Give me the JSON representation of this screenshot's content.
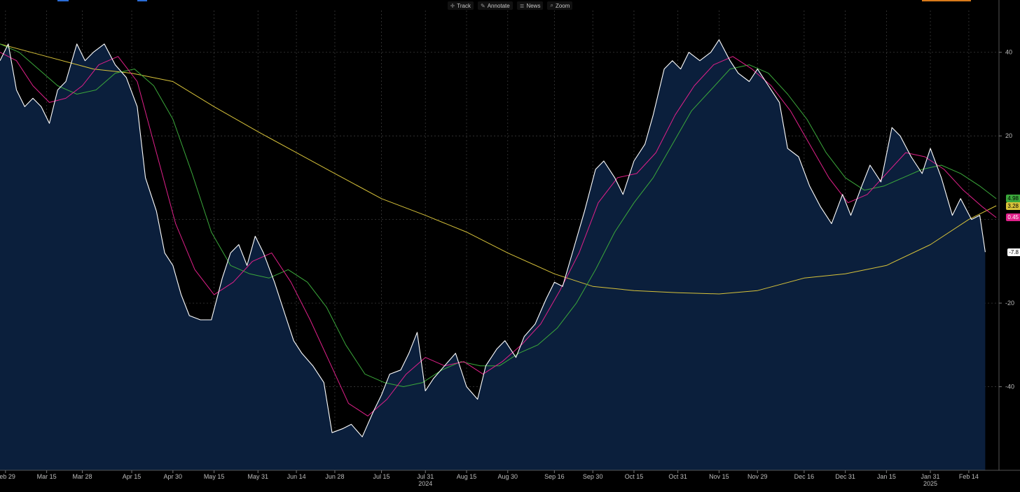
{
  "toolbar": {
    "items": [
      {
        "label": "Track",
        "icon": "crosshair-icon"
      },
      {
        "label": "Annotate",
        "icon": "pencil-icon"
      },
      {
        "label": "News",
        "icon": "news-icon"
      },
      {
        "label": "Zoom",
        "icon": "magnifier-icon"
      }
    ]
  },
  "colors": {
    "background": "#000000",
    "area_fill": "#0b1f3c",
    "price": "#ffffff",
    "ma_short": "#e0208a",
    "ma_medium": "#3ba83b",
    "ma_long": "#d7c23a",
    "grid": "#3a3a3a",
    "axis_text": "#bdbdbd"
  },
  "value_tags": [
    {
      "label": "4.98",
      "series": "ma_medium",
      "bg": "#3ba83b",
      "fg": "#000000"
    },
    {
      "label": "3.28",
      "series": "ma_long",
      "bg": "#d7c23a",
      "fg": "#000000"
    },
    {
      "label": "0.45",
      "series": "ma_short",
      "bg": "#e0208a",
      "fg": "#ffffff"
    },
    {
      "label": "-7.8",
      "series": "price",
      "bg": "#ffffff",
      "fg": "#000000"
    }
  ],
  "chart_data": {
    "type": "line",
    "grid": true,
    "ylim": [
      -60,
      50
    ],
    "y_ticks": [
      40,
      20,
      -20,
      -40
    ],
    "y_ticks_drawn": [
      40,
      20,
      0,
      -20,
      -40
    ],
    "y_tick_labels": [
      "40",
      "20",
      "-20",
      "-40"
    ],
    "x_range": [
      "2024-02-27",
      "2025-02-25"
    ],
    "x_ticks": [
      {
        "label": "Feb 29",
        "date": "2024-02-29"
      },
      {
        "label": "Mar 15",
        "date": "2024-03-15"
      },
      {
        "label": "Mar 28",
        "date": "2024-03-28"
      },
      {
        "label": "Apr 15",
        "date": "2024-04-15"
      },
      {
        "label": "Apr 30",
        "date": "2024-04-30"
      },
      {
        "label": "May 15",
        "date": "2024-05-15"
      },
      {
        "label": "May 31",
        "date": "2024-05-31"
      },
      {
        "label": "Jun 14",
        "date": "2024-06-14"
      },
      {
        "label": "Jun 28",
        "date": "2024-06-28"
      },
      {
        "label": "Jul 15",
        "date": "2024-07-15"
      },
      {
        "label": "Jul 31",
        "date": "2024-07-31"
      },
      {
        "label": "Aug 15",
        "date": "2024-08-15"
      },
      {
        "label": "Aug 30",
        "date": "2024-08-30"
      },
      {
        "label": "Sep 16",
        "date": "2024-09-16"
      },
      {
        "label": "Sep 30",
        "date": "2024-09-30"
      },
      {
        "label": "Oct 15",
        "date": "2024-10-15"
      },
      {
        "label": "Oct 31",
        "date": "2024-10-31"
      },
      {
        "label": "Nov 15",
        "date": "2024-11-15"
      },
      {
        "label": "Nov 29",
        "date": "2024-11-29"
      },
      {
        "label": "Dec 16",
        "date": "2024-12-16"
      },
      {
        "label": "Dec 31",
        "date": "2024-12-31"
      },
      {
        "label": "Jan 15",
        "date": "2025-01-15"
      },
      {
        "label": "Jan 31",
        "date": "2025-01-31"
      },
      {
        "label": "Feb 14",
        "date": "2025-02-14"
      }
    ],
    "year_labels": [
      {
        "label": "2024",
        "date": "2024-07-31"
      },
      {
        "label": "2025",
        "date": "2025-01-31"
      }
    ],
    "series": [
      {
        "key": "price",
        "style": "area",
        "points": [
          [
            "2024-02-27",
            38
          ],
          [
            "2024-03-01",
            42
          ],
          [
            "2024-03-04",
            31
          ],
          [
            "2024-03-07",
            27
          ],
          [
            "2024-03-10",
            29
          ],
          [
            "2024-03-13",
            27
          ],
          [
            "2024-03-16",
            23
          ],
          [
            "2024-03-19",
            31
          ],
          [
            "2024-03-22",
            33
          ],
          [
            "2024-03-26",
            42
          ],
          [
            "2024-03-29",
            38
          ],
          [
            "2024-04-01",
            40
          ],
          [
            "2024-04-05",
            42
          ],
          [
            "2024-04-09",
            37
          ],
          [
            "2024-04-13",
            34
          ],
          [
            "2024-04-17",
            27
          ],
          [
            "2024-04-20",
            10
          ],
          [
            "2024-04-24",
            2
          ],
          [
            "2024-04-27",
            -8
          ],
          [
            "2024-04-30",
            -11
          ],
          [
            "2024-05-03",
            -18
          ],
          [
            "2024-05-06",
            -23
          ],
          [
            "2024-05-10",
            -24
          ],
          [
            "2024-05-14",
            -24
          ],
          [
            "2024-05-18",
            -14
          ],
          [
            "2024-05-21",
            -8
          ],
          [
            "2024-05-24",
            -6
          ],
          [
            "2024-05-27",
            -11
          ],
          [
            "2024-05-30",
            -4
          ],
          [
            "2024-06-02",
            -8
          ],
          [
            "2024-06-06",
            -15
          ],
          [
            "2024-06-10",
            -23
          ],
          [
            "2024-06-13",
            -29
          ],
          [
            "2024-06-16",
            -32
          ],
          [
            "2024-06-20",
            -35
          ],
          [
            "2024-06-24",
            -39
          ],
          [
            "2024-06-27",
            -51
          ],
          [
            "2024-07-01",
            -50
          ],
          [
            "2024-07-04",
            -49
          ],
          [
            "2024-07-08",
            -52
          ],
          [
            "2024-07-12",
            -46
          ],
          [
            "2024-07-15",
            -42
          ],
          [
            "2024-07-18",
            -37
          ],
          [
            "2024-07-22",
            -36
          ],
          [
            "2024-07-25",
            -32
          ],
          [
            "2024-07-28",
            -27
          ],
          [
            "2024-07-31",
            -41
          ],
          [
            "2024-08-03",
            -38
          ],
          [
            "2024-08-07",
            -35
          ],
          [
            "2024-08-11",
            -32
          ],
          [
            "2024-08-15",
            -40
          ],
          [
            "2024-08-19",
            -43
          ],
          [
            "2024-08-22",
            -35
          ],
          [
            "2024-08-26",
            -31
          ],
          [
            "2024-08-29",
            -29
          ],
          [
            "2024-09-02",
            -33
          ],
          [
            "2024-09-05",
            -28
          ],
          [
            "2024-09-09",
            -25
          ],
          [
            "2024-09-13",
            -19
          ],
          [
            "2024-09-16",
            -15
          ],
          [
            "2024-09-19",
            -16
          ],
          [
            "2024-09-23",
            -7
          ],
          [
            "2024-09-27",
            2
          ],
          [
            "2024-10-01",
            12
          ],
          [
            "2024-10-04",
            14
          ],
          [
            "2024-10-08",
            10
          ],
          [
            "2024-10-11",
            6
          ],
          [
            "2024-10-15",
            14
          ],
          [
            "2024-10-19",
            18
          ],
          [
            "2024-10-22",
            25
          ],
          [
            "2024-10-26",
            36
          ],
          [
            "2024-10-29",
            38
          ],
          [
            "2024-11-01",
            36
          ],
          [
            "2024-11-04",
            40
          ],
          [
            "2024-11-08",
            38
          ],
          [
            "2024-11-12",
            40
          ],
          [
            "2024-11-15",
            43
          ],
          [
            "2024-11-19",
            38
          ],
          [
            "2024-11-22",
            35
          ],
          [
            "2024-11-26",
            33
          ],
          [
            "2024-11-29",
            36
          ],
          [
            "2024-12-03",
            32
          ],
          [
            "2024-12-07",
            28
          ],
          [
            "2024-12-10",
            17
          ],
          [
            "2024-12-14",
            15
          ],
          [
            "2024-12-18",
            8
          ],
          [
            "2024-12-22",
            3
          ],
          [
            "2024-12-26",
            -1
          ],
          [
            "2024-12-30",
            6
          ],
          [
            "2025-01-02",
            1
          ],
          [
            "2025-01-06",
            8
          ],
          [
            "2025-01-09",
            13
          ],
          [
            "2025-01-13",
            9
          ],
          [
            "2025-01-17",
            22
          ],
          [
            "2025-01-20",
            20
          ],
          [
            "2025-01-24",
            15
          ],
          [
            "2025-01-28",
            11
          ],
          [
            "2025-01-31",
            17
          ],
          [
            "2025-02-04",
            10
          ],
          [
            "2025-02-08",
            1
          ],
          [
            "2025-02-11",
            5
          ],
          [
            "2025-02-15",
            0
          ],
          [
            "2025-02-18",
            1
          ],
          [
            "2025-02-20",
            -7.8
          ]
        ]
      },
      {
        "key": "ma_short",
        "style": "line",
        "points": [
          [
            "2024-02-27",
            40
          ],
          [
            "2024-03-04",
            38
          ],
          [
            "2024-03-10",
            32
          ],
          [
            "2024-03-16",
            28
          ],
          [
            "2024-03-22",
            29
          ],
          [
            "2024-03-28",
            32
          ],
          [
            "2024-04-03",
            37
          ],
          [
            "2024-04-10",
            39
          ],
          [
            "2024-04-17",
            33
          ],
          [
            "2024-04-24",
            16
          ],
          [
            "2024-05-01",
            -1
          ],
          [
            "2024-05-08",
            -12
          ],
          [
            "2024-05-15",
            -18
          ],
          [
            "2024-05-22",
            -15
          ],
          [
            "2024-05-29",
            -10
          ],
          [
            "2024-06-05",
            -8
          ],
          [
            "2024-06-12",
            -15
          ],
          [
            "2024-06-19",
            -24
          ],
          [
            "2024-06-26",
            -34
          ],
          [
            "2024-07-03",
            -44
          ],
          [
            "2024-07-10",
            -47
          ],
          [
            "2024-07-17",
            -43
          ],
          [
            "2024-07-24",
            -37
          ],
          [
            "2024-07-31",
            -33
          ],
          [
            "2024-08-07",
            -35
          ],
          [
            "2024-08-14",
            -34
          ],
          [
            "2024-08-21",
            -37
          ],
          [
            "2024-08-28",
            -34
          ],
          [
            "2024-09-04",
            -30
          ],
          [
            "2024-09-11",
            -25
          ],
          [
            "2024-09-18",
            -17
          ],
          [
            "2024-09-25",
            -8
          ],
          [
            "2024-10-02",
            4
          ],
          [
            "2024-10-09",
            10
          ],
          [
            "2024-10-16",
            11
          ],
          [
            "2024-10-23",
            16
          ],
          [
            "2024-10-30",
            25
          ],
          [
            "2024-11-06",
            32
          ],
          [
            "2024-11-13",
            37
          ],
          [
            "2024-11-20",
            39
          ],
          [
            "2024-11-27",
            36
          ],
          [
            "2024-12-04",
            32
          ],
          [
            "2024-12-11",
            26
          ],
          [
            "2024-12-18",
            18
          ],
          [
            "2024-12-25",
            10
          ],
          [
            "2025-01-01",
            4
          ],
          [
            "2025-01-08",
            6
          ],
          [
            "2025-01-15",
            11
          ],
          [
            "2025-01-22",
            16
          ],
          [
            "2025-01-29",
            15
          ],
          [
            "2025-02-05",
            12
          ],
          [
            "2025-02-12",
            7
          ],
          [
            "2025-02-19",
            3
          ],
          [
            "2025-02-24",
            0.45
          ]
        ]
      },
      {
        "key": "ma_medium",
        "style": "line",
        "points": [
          [
            "2024-02-27",
            42
          ],
          [
            "2024-03-05",
            40
          ],
          [
            "2024-03-12",
            36
          ],
          [
            "2024-03-19",
            32
          ],
          [
            "2024-03-26",
            30
          ],
          [
            "2024-04-02",
            31
          ],
          [
            "2024-04-09",
            35
          ],
          [
            "2024-04-16",
            36
          ],
          [
            "2024-04-23",
            32
          ],
          [
            "2024-04-30",
            24
          ],
          [
            "2024-05-07",
            11
          ],
          [
            "2024-05-14",
            -3
          ],
          [
            "2024-05-21",
            -11
          ],
          [
            "2024-05-28",
            -13
          ],
          [
            "2024-06-04",
            -14
          ],
          [
            "2024-06-11",
            -12
          ],
          [
            "2024-06-18",
            -15
          ],
          [
            "2024-06-25",
            -21
          ],
          [
            "2024-07-02",
            -30
          ],
          [
            "2024-07-09",
            -37
          ],
          [
            "2024-07-16",
            -39
          ],
          [
            "2024-07-23",
            -40
          ],
          [
            "2024-07-30",
            -39
          ],
          [
            "2024-08-06",
            -36
          ],
          [
            "2024-08-13",
            -34
          ],
          [
            "2024-08-20",
            -35
          ],
          [
            "2024-08-27",
            -35
          ],
          [
            "2024-09-03",
            -32
          ],
          [
            "2024-09-10",
            -30
          ],
          [
            "2024-09-17",
            -26
          ],
          [
            "2024-09-24",
            -20
          ],
          [
            "2024-10-01",
            -12
          ],
          [
            "2024-10-08",
            -3
          ],
          [
            "2024-10-15",
            4
          ],
          [
            "2024-10-22",
            10
          ],
          [
            "2024-10-29",
            18
          ],
          [
            "2024-11-05",
            26
          ],
          [
            "2024-11-12",
            31
          ],
          [
            "2024-11-19",
            36
          ],
          [
            "2024-11-26",
            37
          ],
          [
            "2024-12-03",
            35
          ],
          [
            "2024-12-10",
            30
          ],
          [
            "2024-12-17",
            24
          ],
          [
            "2024-12-24",
            16
          ],
          [
            "2024-12-31",
            10
          ],
          [
            "2025-01-07",
            7
          ],
          [
            "2025-01-14",
            8
          ],
          [
            "2025-01-21",
            10
          ],
          [
            "2025-01-28",
            12
          ],
          [
            "2025-02-04",
            13
          ],
          [
            "2025-02-11",
            11
          ],
          [
            "2025-02-18",
            8
          ],
          [
            "2025-02-24",
            4.98
          ]
        ]
      },
      {
        "key": "ma_long",
        "style": "line",
        "points": [
          [
            "2024-02-27",
            42
          ],
          [
            "2024-03-15",
            39
          ],
          [
            "2024-04-01",
            36
          ],
          [
            "2024-04-15",
            35
          ],
          [
            "2024-04-30",
            33
          ],
          [
            "2024-05-15",
            27
          ],
          [
            "2024-05-31",
            21
          ],
          [
            "2024-06-14",
            16
          ],
          [
            "2024-06-28",
            11
          ],
          [
            "2024-07-15",
            5
          ],
          [
            "2024-07-31",
            1
          ],
          [
            "2024-08-15",
            -3
          ],
          [
            "2024-08-30",
            -8
          ],
          [
            "2024-09-16",
            -13
          ],
          [
            "2024-09-30",
            -16
          ],
          [
            "2024-10-15",
            -17
          ],
          [
            "2024-10-31",
            -17.5
          ],
          [
            "2024-11-15",
            -17.8
          ],
          [
            "2024-11-29",
            -17
          ],
          [
            "2024-12-16",
            -14
          ],
          [
            "2024-12-31",
            -13
          ],
          [
            "2025-01-15",
            -11
          ],
          [
            "2025-01-31",
            -6
          ],
          [
            "2025-02-14",
            0
          ],
          [
            "2025-02-24",
            3.28
          ]
        ]
      }
    ]
  }
}
